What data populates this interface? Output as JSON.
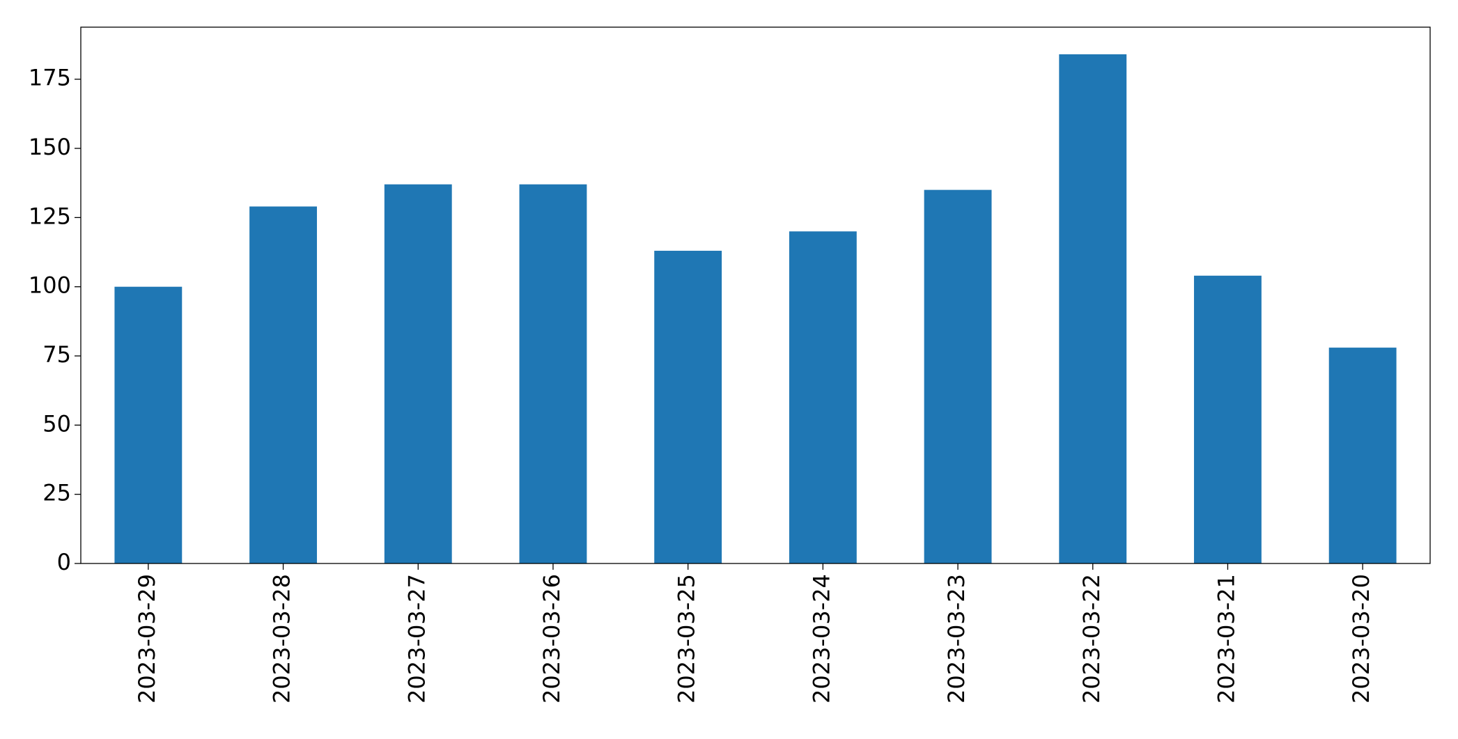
{
  "chart_data": {
    "type": "bar",
    "categories": [
      "2023-03-29",
      "2023-03-28",
      "2023-03-27",
      "2023-03-26",
      "2023-03-25",
      "2023-03-24",
      "2023-03-23",
      "2023-03-22",
      "2023-03-21",
      "2023-03-20"
    ],
    "values": [
      100,
      129,
      137,
      137,
      113,
      120,
      135,
      184,
      104,
      78
    ],
    "color": "#1f77b4",
    "ylim": [
      0,
      193.8
    ],
    "yticks": [
      0,
      25,
      50,
      75,
      100,
      125,
      150,
      175
    ],
    "grid": false
  }
}
